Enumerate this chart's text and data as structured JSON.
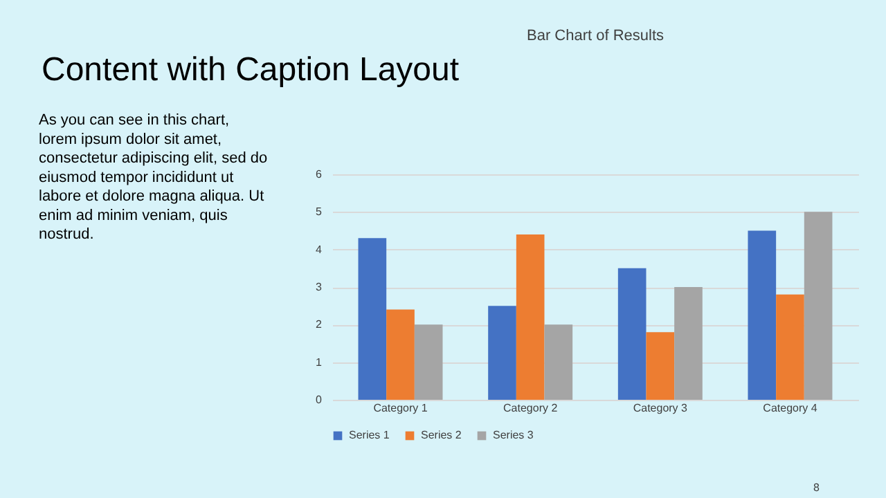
{
  "chart_data": {
    "type": "bar",
    "title": "Bar Chart of Results",
    "categories": [
      "Category 1",
      "Category 2",
      "Category 3",
      "Category 4"
    ],
    "series": [
      {
        "name": "Series 1",
        "color": "#4472c4",
        "values": [
          4.3,
          2.5,
          3.5,
          4.5
        ]
      },
      {
        "name": "Series 2",
        "color": "#ed7d31",
        "values": [
          2.4,
          4.4,
          1.8,
          2.8
        ]
      },
      {
        "name": "Series 3",
        "color": "#a5a5a5",
        "values": [
          2,
          2,
          3,
          5
        ]
      }
    ],
    "ylim": [
      0,
      6
    ],
    "yticks": [
      0,
      1,
      2,
      3,
      4,
      5,
      6
    ],
    "grid": "y",
    "legend": "bottom",
    "annotations": [
      "Content with Caption Layout",
      "As you can see in this chart,\nlorem ipsum dolor sit amet,\nconsectetur adipiscing elit, sed do\neiusmod tempor incididunt ut\nlabore et dolore magna aliqua. Ut\nenim ad minim veniam, quis\nnostrud.",
      "8"
    ]
  }
}
